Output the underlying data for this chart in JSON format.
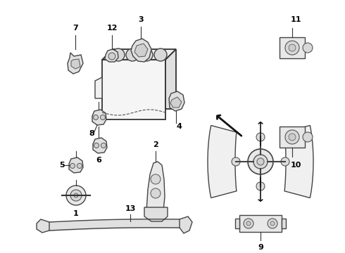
{
  "bg_color": "#ffffff",
  "line_color": "#333333",
  "text_color": "#000000",
  "figsize": [
    4.9,
    3.6
  ],
  "dpi": 100
}
